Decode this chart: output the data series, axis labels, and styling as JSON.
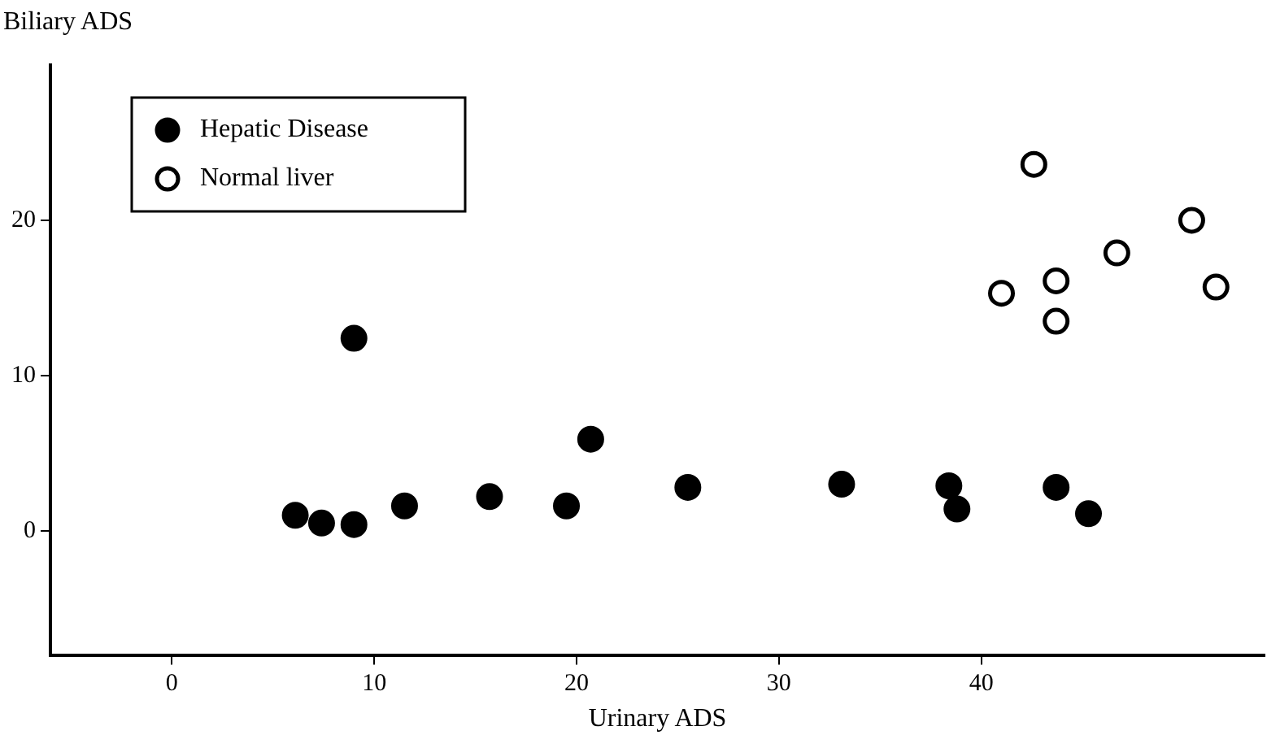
{
  "chart_data": {
    "type": "scatter",
    "xlabel": "Urinary ADS",
    "ylabel": "Biliary ADS",
    "xlim": [
      -6,
      54
    ],
    "ylim": [
      -8,
      30
    ],
    "xticks": [
      0,
      10,
      20,
      30,
      40
    ],
    "yticks": [
      0,
      10,
      20
    ],
    "grid": false,
    "legend": "top left",
    "marker": "circle",
    "series": [
      {
        "name": "Hepatic Disease",
        "color": "#000000",
        "x": [
          6.1,
          7.4,
          9.0,
          9.0,
          11.5,
          15.7,
          19.5,
          20.7,
          25.5,
          33.1,
          38.4,
          38.8,
          43.7,
          45.3
        ],
        "values": [
          1.0,
          0.5,
          0.4,
          12.4,
          1.6,
          2.2,
          1.6,
          5.9,
          2.8,
          3.0,
          2.9,
          1.4,
          2.8,
          1.1
        ]
      },
      {
        "name": "Normal liver",
        "color": "#ffffff",
        "x": [
          41.0,
          42.6,
          43.7,
          43.7,
          46.7,
          50.4,
          51.6
        ],
        "values": [
          15.3,
          23.6,
          16.1,
          13.5,
          17.9,
          20.0,
          15.7
        ]
      }
    ]
  }
}
